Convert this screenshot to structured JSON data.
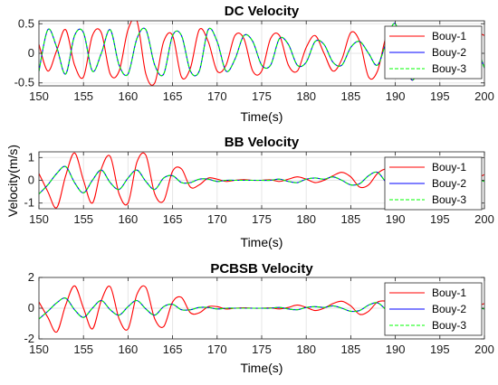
{
  "figure": {
    "shared_ylabel": "Velocity(m/s)",
    "colors": {
      "bouy1": "#ff0000",
      "bouy2": "#0000ff",
      "bouy3": "#00ff00",
      "grid": "#e6e6e6",
      "axis": "#262626"
    }
  },
  "chart_data": [
    {
      "type": "line",
      "title": "DC Velocity",
      "xlabel": "Time(s)",
      "ylabel": "",
      "xlim": [
        150,
        200
      ],
      "ylim": [
        -0.55,
        0.55
      ],
      "xticks": [
        150,
        155,
        160,
        165,
        170,
        175,
        180,
        185,
        190,
        195,
        200
      ],
      "yticks": [
        -0.5,
        0,
        0.5
      ],
      "ytick_labels": [
        "-0.5",
        "0",
        "0.5"
      ],
      "grid": true,
      "legend": "right",
      "series": [
        {
          "name": "Bouy-1",
          "style": "solid",
          "color": "#ff0000",
          "x": [
            150,
            151,
            152,
            153,
            154,
            155,
            156,
            157,
            158,
            159,
            160,
            161,
            162,
            163,
            164,
            165,
            166,
            167,
            168,
            169,
            170,
            171,
            172,
            173,
            174,
            175,
            176,
            177,
            178,
            179,
            180,
            181,
            182,
            183,
            184,
            185,
            186,
            187,
            188,
            189,
            190,
            191,
            192,
            193,
            194,
            195,
            196,
            197,
            198,
            199,
            200
          ],
          "y": [
            0.15,
            -0.3,
            0.05,
            0.4,
            -0.2,
            -0.4,
            0.3,
            0.35,
            -0.35,
            -0.3,
            0.4,
            0.55,
            -0.35,
            -0.5,
            0.2,
            0.3,
            -0.4,
            -0.25,
            0.4,
            0.2,
            -0.3,
            -0.2,
            0.3,
            0.25,
            -0.3,
            -0.3,
            0.25,
            0.3,
            -0.2,
            -0.3,
            0.1,
            0.3,
            0.0,
            -0.3,
            -0.1,
            0.35,
            0.2,
            -0.4,
            -0.3,
            0.3,
            0.4,
            -0.15,
            -0.45,
            0.05,
            0.45,
            0.1,
            -0.3,
            -0.25,
            0.2,
            0.35,
            0.3
          ]
        },
        {
          "name": "Bouy-2",
          "style": "solid",
          "color": "#0000ff",
          "x": [
            150,
            151,
            152,
            153,
            154,
            155,
            156,
            157,
            158,
            159,
            160,
            161,
            162,
            163,
            164,
            165,
            166,
            167,
            168,
            169,
            170,
            171,
            172,
            173,
            174,
            175,
            176,
            177,
            178,
            179,
            180,
            181,
            182,
            183,
            184,
            185,
            186,
            187,
            188,
            189,
            190,
            191,
            192,
            193,
            194,
            195,
            196,
            197,
            198,
            199,
            200
          ],
          "y": [
            -0.3,
            0.4,
            0.1,
            -0.35,
            0.3,
            0.35,
            -0.3,
            0.0,
            0.4,
            -0.2,
            -0.35,
            0.25,
            0.4,
            -0.2,
            -0.35,
            0.3,
            0.3,
            -0.3,
            -0.3,
            0.4,
            0.2,
            -0.3,
            -0.1,
            0.3,
            0.2,
            -0.2,
            -0.2,
            0.25,
            0.15,
            -0.2,
            -0.15,
            0.2,
            0.15,
            -0.15,
            -0.2,
            0.1,
            0.2,
            0.0,
            -0.2,
            0.2,
            0.5,
            -0.1,
            -0.45,
            0.1,
            0.45,
            0.1,
            -0.3,
            -0.2,
            0.3,
            0.15,
            -0.25
          ]
        },
        {
          "name": "Bouy-3",
          "style": "dashed",
          "color": "#00ff00",
          "x": [
            150,
            151,
            152,
            153,
            154,
            155,
            156,
            157,
            158,
            159,
            160,
            161,
            162,
            163,
            164,
            165,
            166,
            167,
            168,
            169,
            170,
            171,
            172,
            173,
            174,
            175,
            176,
            177,
            178,
            179,
            180,
            181,
            182,
            183,
            184,
            185,
            186,
            187,
            188,
            189,
            190,
            191,
            192,
            193,
            194,
            195,
            196,
            197,
            198,
            199,
            200
          ],
          "y": [
            -0.3,
            0.4,
            0.1,
            -0.35,
            0.3,
            0.35,
            -0.3,
            0.0,
            0.4,
            -0.2,
            -0.35,
            0.25,
            0.4,
            -0.2,
            -0.35,
            0.3,
            0.3,
            -0.3,
            -0.3,
            0.4,
            0.2,
            -0.3,
            -0.1,
            0.3,
            0.2,
            -0.2,
            -0.2,
            0.25,
            0.15,
            -0.2,
            -0.15,
            0.2,
            0.15,
            -0.15,
            -0.2,
            0.1,
            0.2,
            0.0,
            -0.2,
            0.2,
            0.5,
            -0.1,
            -0.45,
            0.1,
            0.45,
            0.1,
            -0.3,
            -0.2,
            0.3,
            0.15,
            -0.25
          ]
        }
      ]
    },
    {
      "type": "line",
      "title": "BB Velocity",
      "xlabel": "Time(s)",
      "ylabel": "",
      "xlim": [
        150,
        200
      ],
      "ylim": [
        -1.25,
        1.25
      ],
      "xticks": [
        150,
        155,
        160,
        165,
        170,
        175,
        180,
        185,
        190,
        195,
        200
      ],
      "yticks": [
        -1,
        0,
        1
      ],
      "ytick_labels": [
        "-1",
        "0",
        "1"
      ],
      "grid": true,
      "legend": "right",
      "series": [
        {
          "name": "Bouy-1",
          "style": "solid",
          "color": "#ff0000",
          "x": [
            150,
            151,
            152,
            153,
            154,
            155,
            156,
            157,
            158,
            159,
            160,
            161,
            162,
            163,
            164,
            165,
            166,
            167,
            168,
            169,
            170,
            171,
            172,
            173,
            174,
            175,
            176,
            177,
            178,
            179,
            180,
            181,
            182,
            183,
            184,
            185,
            186,
            187,
            188,
            189,
            190,
            191,
            192,
            193,
            194,
            195,
            196,
            197,
            198,
            199,
            200
          ],
          "y": [
            0.3,
            -0.5,
            -1.2,
            0.2,
            1.2,
            0.0,
            -1.0,
            0.5,
            1.05,
            -0.6,
            -1.0,
            0.8,
            1.1,
            -0.6,
            -0.9,
            0.4,
            0.5,
            -0.3,
            -0.2,
            0.1,
            0.05,
            -0.05,
            0.0,
            0.03,
            0.0,
            0.0,
            0.02,
            -0.05,
            0.05,
            0.15,
            0.05,
            -0.1,
            0.0,
            0.2,
            0.35,
            0.15,
            -0.3,
            -0.2,
            0.3,
            0.5,
            0.3,
            -0.4,
            -0.6,
            0.1,
            0.45,
            0.1,
            -0.3,
            -0.1,
            0.2,
            0.1,
            0.25
          ]
        },
        {
          "name": "Bouy-2",
          "style": "solid",
          "color": "#0000ff",
          "x": [
            150,
            151,
            152,
            153,
            154,
            155,
            156,
            157,
            158,
            159,
            160,
            161,
            162,
            163,
            164,
            165,
            166,
            167,
            168,
            169,
            170,
            171,
            172,
            173,
            174,
            175,
            176,
            177,
            178,
            179,
            180,
            181,
            182,
            183,
            184,
            185,
            186,
            187,
            188,
            189,
            190,
            191,
            192,
            193,
            194,
            195,
            196,
            197,
            198,
            199,
            200
          ],
          "y": [
            -0.6,
            -0.2,
            0.3,
            0.6,
            -0.1,
            -0.55,
            0.0,
            0.45,
            -0.1,
            -0.4,
            0.1,
            0.45,
            -0.05,
            -0.4,
            0.1,
            0.2,
            -0.1,
            -0.1,
            0.05,
            0.05,
            -0.05,
            0.0,
            0.0,
            0.0,
            0.0,
            0.0,
            0.0,
            0.05,
            -0.05,
            -0.1,
            0.05,
            0.1,
            0.05,
            0.15,
            0.0,
            -0.2,
            -0.15,
            0.2,
            0.35,
            -0.1,
            -0.35,
            0.05,
            0.3,
            0.05,
            -0.25,
            0.0,
            0.2,
            0.05,
            -0.1,
            0.05,
            -0.05
          ]
        },
        {
          "name": "Bouy-3",
          "style": "dashed",
          "color": "#00ff00",
          "x": [
            150,
            151,
            152,
            153,
            154,
            155,
            156,
            157,
            158,
            159,
            160,
            161,
            162,
            163,
            164,
            165,
            166,
            167,
            168,
            169,
            170,
            171,
            172,
            173,
            174,
            175,
            176,
            177,
            178,
            179,
            180,
            181,
            182,
            183,
            184,
            185,
            186,
            187,
            188,
            189,
            190,
            191,
            192,
            193,
            194,
            195,
            196,
            197,
            198,
            199,
            200
          ],
          "y": [
            -0.6,
            -0.2,
            0.3,
            0.6,
            -0.1,
            -0.55,
            0.0,
            0.45,
            -0.1,
            -0.4,
            0.1,
            0.45,
            -0.05,
            -0.4,
            0.1,
            0.2,
            -0.1,
            -0.1,
            0.05,
            0.05,
            -0.05,
            0.0,
            0.0,
            0.0,
            0.0,
            0.0,
            0.0,
            0.05,
            -0.05,
            -0.1,
            0.05,
            0.1,
            0.05,
            0.15,
            0.0,
            -0.2,
            -0.15,
            0.2,
            0.35,
            -0.1,
            -0.35,
            0.05,
            0.3,
            0.05,
            -0.25,
            0.0,
            0.2,
            0.05,
            -0.1,
            0.05,
            -0.05
          ]
        }
      ]
    },
    {
      "type": "line",
      "title": "PCBSB Velocity",
      "xlabel": "Time(s)",
      "ylabel": "",
      "xlim": [
        150,
        200
      ],
      "ylim": [
        -2,
        2
      ],
      "xticks": [
        150,
        155,
        160,
        165,
        170,
        175,
        180,
        185,
        190,
        195,
        200
      ],
      "yticks": [
        -2,
        0,
        2
      ],
      "ytick_labels": [
        "-2",
        "0",
        "2"
      ],
      "grid": true,
      "legend": "right",
      "series": [
        {
          "name": "Bouy-1",
          "style": "solid",
          "color": "#ff0000",
          "x": [
            150,
            151,
            152,
            153,
            154,
            155,
            156,
            157,
            158,
            159,
            160,
            161,
            162,
            163,
            164,
            165,
            166,
            167,
            168,
            169,
            170,
            171,
            172,
            173,
            174,
            175,
            176,
            177,
            178,
            179,
            180,
            181,
            182,
            183,
            184,
            185,
            186,
            187,
            188,
            189,
            190,
            191,
            192,
            193,
            194,
            195,
            196,
            197,
            198,
            199,
            200
          ],
          "y": [
            0.4,
            -0.6,
            -1.55,
            0.2,
            1.45,
            0.0,
            -1.35,
            0.5,
            1.4,
            -0.7,
            -1.35,
            0.9,
            1.35,
            -0.7,
            -1.2,
            0.4,
            0.7,
            -0.3,
            -0.3,
            0.1,
            0.1,
            -0.05,
            0.0,
            0.03,
            0.0,
            0.0,
            0.02,
            -0.05,
            0.05,
            0.2,
            0.05,
            -0.15,
            0.0,
            0.3,
            0.45,
            0.15,
            -0.4,
            -0.2,
            0.4,
            0.45,
            0.2,
            -0.5,
            -0.7,
            0.1,
            0.6,
            0.15,
            -0.4,
            -0.15,
            0.3,
            0.15,
            0.3
          ]
        },
        {
          "name": "Bouy-2",
          "style": "solid",
          "color": "#0000ff",
          "x": [
            150,
            151,
            152,
            153,
            154,
            155,
            156,
            157,
            158,
            159,
            160,
            161,
            162,
            163,
            164,
            165,
            166,
            167,
            168,
            169,
            170,
            171,
            172,
            173,
            174,
            175,
            176,
            177,
            178,
            179,
            180,
            181,
            182,
            183,
            184,
            185,
            186,
            187,
            188,
            189,
            190,
            191,
            192,
            193,
            194,
            195,
            196,
            197,
            198,
            199,
            200
          ],
          "y": [
            -0.7,
            -0.2,
            0.35,
            0.65,
            -0.1,
            -0.6,
            0.0,
            0.5,
            -0.1,
            -0.45,
            0.1,
            0.5,
            -0.05,
            -0.45,
            0.1,
            0.25,
            -0.1,
            -0.1,
            0.05,
            0.05,
            -0.05,
            0.0,
            0.0,
            0.0,
            0.0,
            0.0,
            0.0,
            0.05,
            -0.05,
            -0.1,
            0.05,
            0.1,
            0.05,
            0.15,
            0.0,
            -0.2,
            -0.15,
            0.2,
            0.35,
            -0.1,
            -0.35,
            0.05,
            0.3,
            0.05,
            -0.25,
            0.0,
            0.2,
            0.05,
            -0.1,
            0.05,
            -0.05
          ]
        },
        {
          "name": "Bouy-3",
          "style": "dashed",
          "color": "#00ff00",
          "x": [
            150,
            151,
            152,
            153,
            154,
            155,
            156,
            157,
            158,
            159,
            160,
            161,
            162,
            163,
            164,
            165,
            166,
            167,
            168,
            169,
            170,
            171,
            172,
            173,
            174,
            175,
            176,
            177,
            178,
            179,
            180,
            181,
            182,
            183,
            184,
            185,
            186,
            187,
            188,
            189,
            190,
            191,
            192,
            193,
            194,
            195,
            196,
            197,
            198,
            199,
            200
          ],
          "y": [
            -0.7,
            -0.2,
            0.35,
            0.65,
            -0.1,
            -0.6,
            0.0,
            0.5,
            -0.1,
            -0.45,
            0.1,
            0.5,
            -0.05,
            -0.45,
            0.1,
            0.25,
            -0.1,
            -0.1,
            0.05,
            0.05,
            -0.05,
            0.0,
            0.0,
            0.0,
            0.0,
            0.0,
            0.0,
            0.05,
            -0.05,
            -0.1,
            0.05,
            0.1,
            0.05,
            0.15,
            0.0,
            -0.2,
            -0.15,
            0.2,
            0.35,
            -0.1,
            -0.35,
            0.05,
            0.3,
            0.05,
            -0.25,
            0.0,
            0.2,
            0.05,
            -0.1,
            0.05,
            -0.05
          ]
        }
      ]
    }
  ]
}
